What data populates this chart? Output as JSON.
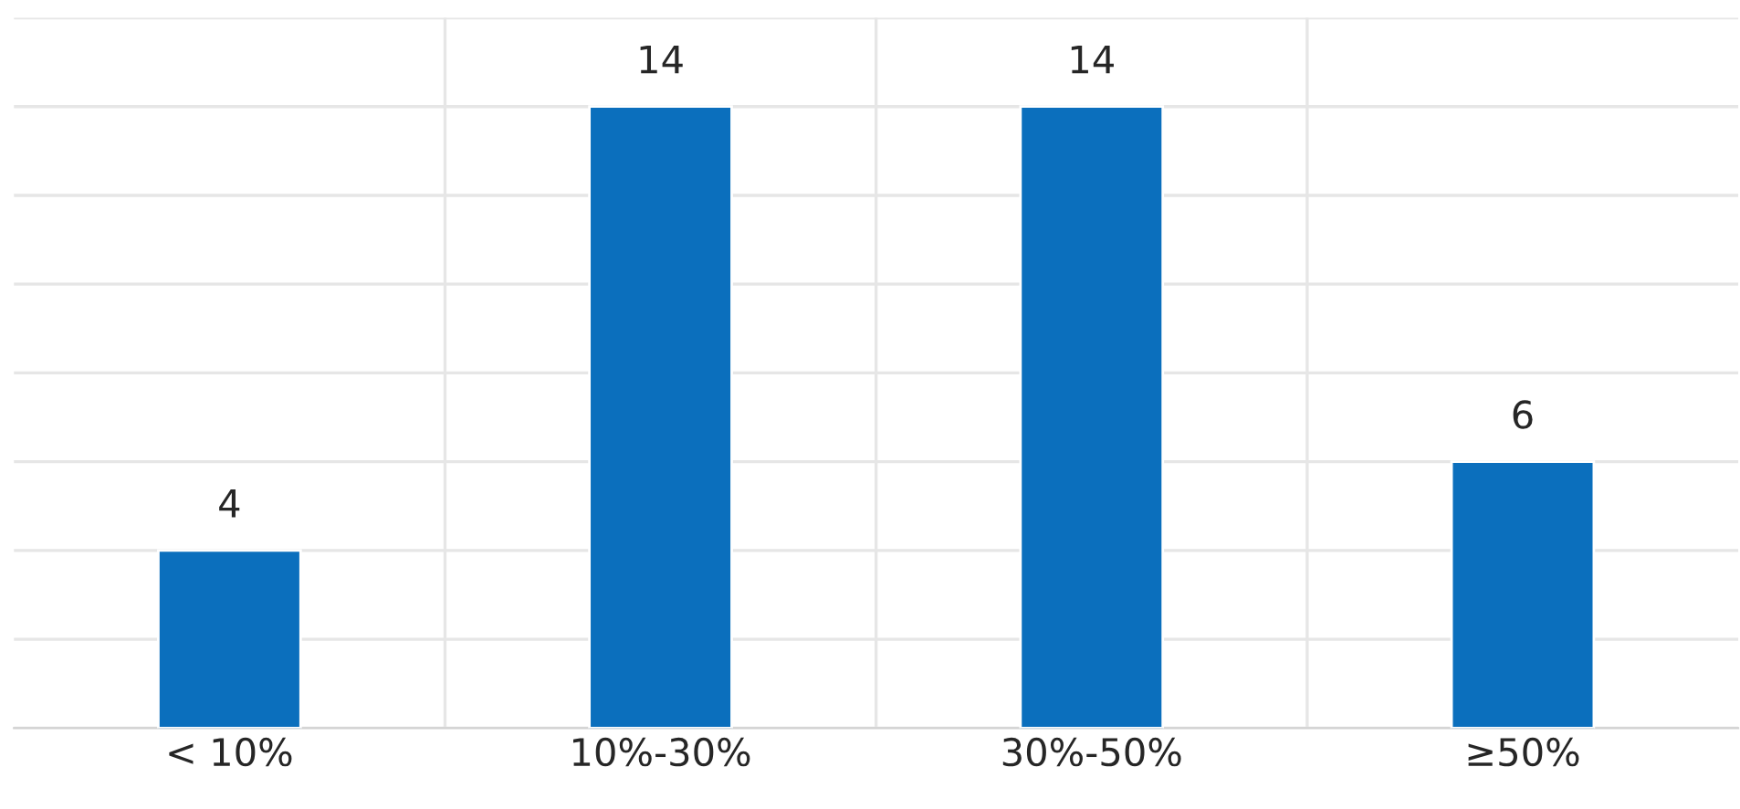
{
  "chart_data": {
    "type": "bar",
    "categories": [
      "< 10%",
      "10%-30%",
      "30%-50%",
      "≥50%"
    ],
    "values": [
      4,
      14,
      14,
      6
    ],
    "color": "#0b6fbd",
    "ylim": [
      0,
      16
    ],
    "yticks": [
      {
        "value": 0,
        "label": null
      },
      {
        "value": 2,
        "label": null
      },
      {
        "value": 4,
        "label": null
      },
      {
        "value": 6,
        "label": null
      },
      {
        "value": 8,
        "label": null
      },
      {
        "value": 10,
        "label": null
      },
      {
        "value": 12,
        "label": null
      },
      {
        "value": 14,
        "label": null
      },
      {
        "value": 16,
        "label": null
      }
    ],
    "tick_labels": "x",
    "grid": true,
    "data_labels": true
  }
}
